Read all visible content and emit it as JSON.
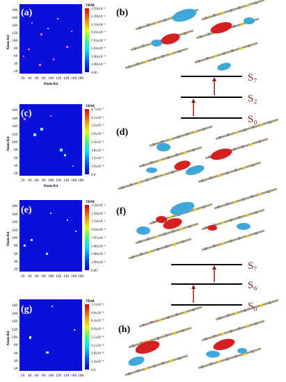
{
  "panels": [
    {
      "id": "a",
      "label": "(a)",
      "type": "heatmap",
      "colorbar": {
        "title": "TDM",
        "values": [
          "1.59x10⁻³",
          "1.39x10⁻³",
          "1.19x10⁻³",
          "9.91x10⁻⁴",
          "7.93x10⁻⁴",
          "5.94x10⁻⁴",
          "3.96x10⁻⁴",
          "1.98x10⁻⁴",
          "0.00"
        ]
      }
    },
    {
      "id": "b",
      "label": "(b)",
      "type": "molecule-image"
    },
    {
      "id": "c",
      "label": "(c)",
      "type": "heatmap",
      "colorbar": {
        "title": "TDM",
        "values": [
          "4.7x10⁻³",
          "4.1x10⁻³",
          "3.5x10⁻³",
          "2.9x10⁻³",
          "2.4x10⁻³",
          "1.8x10⁻³",
          "1.2x10⁻³",
          "5.9x10⁻⁴",
          "0.0"
        ]
      }
    },
    {
      "id": "d",
      "label": "(d)",
      "type": "molecule-image"
    },
    {
      "id": "e",
      "label": "(e)",
      "type": "heatmap",
      "colorbar": {
        "title": "TDM",
        "values": [
          "1.59x10⁻³",
          "1.39x10⁻³",
          "1.19x10⁻³",
          "9.94x10⁻⁴",
          "7.95x10⁻⁴",
          "5.96x10⁻⁴",
          "3.98x10⁻⁴",
          "1.99x10⁻⁴",
          "0.00"
        ]
      }
    },
    {
      "id": "f",
      "label": "(f)",
      "type": "molecule-image"
    },
    {
      "id": "g",
      "label": "(g)",
      "type": "heatmap",
      "colorbar": {
        "title": "TDM",
        "values": [
          "1.1x10⁻³",
          "9.6x10⁻⁴",
          "8.3x10⁻⁴",
          "6.9x10⁻⁴",
          "5.5x10⁻⁴",
          "4.1x10⁻⁴",
          "2.8x10⁻⁴",
          "1.4x10⁻⁴",
          "0.0"
        ]
      }
    },
    {
      "id": "h",
      "label": "(h)",
      "type": "molecule-image"
    }
  ],
  "axes": {
    "xlabel": "Atom list",
    "ylabel": "Atom list",
    "xticks": [
      "20",
      "40",
      "60",
      "80",
      "100",
      "120",
      "140",
      "160",
      "180"
    ],
    "yticks": [
      "180",
      "160",
      "140",
      "120",
      "100",
      "80",
      "60",
      "40",
      "20"
    ]
  },
  "level_diagrams": [
    {
      "levels": [
        "S₇",
        "S₂",
        "S₀"
      ]
    },
    {
      "levels": [
        "S₇",
        "S₆",
        "S₀"
      ]
    }
  ],
  "colors": {
    "heatmap_bg": "#0a10d8",
    "arrow": "#8b1a1a",
    "phase_red": "#d42020",
    "phase_blue": "#3fa8d8"
  }
}
